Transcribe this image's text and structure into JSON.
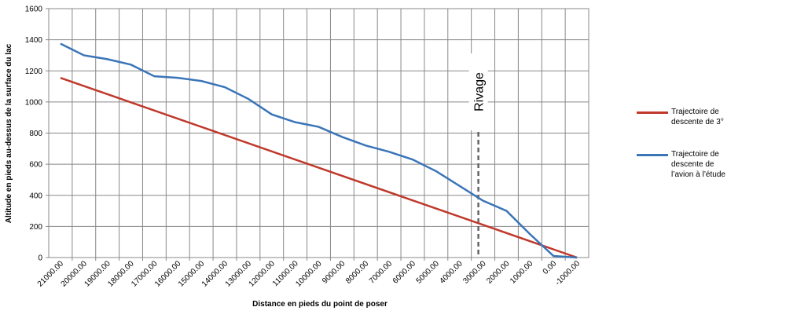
{
  "chart_data": {
    "type": "line",
    "x_label": "Distance en pieds du point de poser",
    "y_label": "Altitude en pieds au-dessus de la surface du lac",
    "xlim": [
      21500,
      -1500
    ],
    "ylim": [
      0,
      1600
    ],
    "yticks": [
      0,
      200,
      400,
      600,
      800,
      1000,
      1200,
      1400,
      1600
    ],
    "xticks": [
      {
        "value": 21000,
        "label": "21000.00"
      },
      {
        "value": 20000,
        "label": "20000.00"
      },
      {
        "value": 19000,
        "label": "19000.00"
      },
      {
        "value": 18000,
        "label": "18000.00"
      },
      {
        "value": 17000,
        "label": "17000.00"
      },
      {
        "value": 16000,
        "label": "16000.00"
      },
      {
        "value": 15000,
        "label": "15000.00"
      },
      {
        "value": 14000,
        "label": "14000.00"
      },
      {
        "value": 13000,
        "label": "13000.00"
      },
      {
        "value": 12000,
        "label": "12000.00"
      },
      {
        "value": 11000,
        "label": "11000.00"
      },
      {
        "value": 10000,
        "label": "10000.00"
      },
      {
        "value": 9000,
        "label": "9000.00"
      },
      {
        "value": 8000,
        "label": "8000.00"
      },
      {
        "value": 7000,
        "label": "7000.00"
      },
      {
        "value": 6000,
        "label": "6000.00"
      },
      {
        "value": 5000,
        "label": "5000.00"
      },
      {
        "value": 4000,
        "label": "4000.00"
      },
      {
        "value": 3000,
        "label": "3000.00"
      },
      {
        "value": 2000,
        "label": "2000.00"
      },
      {
        "value": 1000,
        "label": "1000.00"
      },
      {
        "value": 0,
        "label": "0.00"
      },
      {
        "value": -1000,
        "label": "-1000.00"
      }
    ],
    "grid": true,
    "legend": "right",
    "series": [
      {
        "name": "Trajectoire de descente de 3°",
        "color": "#c0392b",
        "x": [
          21000,
          -1000
        ],
        "values": [
          1155,
          0
        ]
      },
      {
        "name": "Trajectoire de descente de l’avion à l’étude",
        "color": "#3a75b8",
        "x": [
          21000,
          20000,
          19000,
          18000,
          17000,
          16000,
          15000,
          14000,
          13000,
          12000,
          11000,
          10000,
          9000,
          8000,
          7000,
          6000,
          5000,
          4000,
          3000,
          2000,
          1000,
          0,
          -1000
        ],
        "values": [
          1375,
          1300,
          1275,
          1240,
          1165,
          1155,
          1135,
          1095,
          1020,
          920,
          870,
          840,
          775,
          720,
          680,
          630,
          555,
          460,
          365,
          300,
          150,
          10,
          0
        ]
      }
    ],
    "annotations": [
      {
        "text": "Rivage",
        "x": 3200
      }
    ]
  }
}
